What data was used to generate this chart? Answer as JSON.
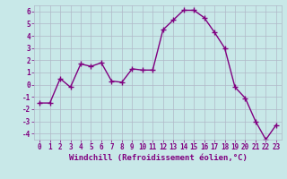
{
  "x": [
    0,
    1,
    2,
    3,
    4,
    5,
    6,
    7,
    8,
    9,
    10,
    11,
    12,
    13,
    14,
    15,
    16,
    17,
    18,
    19,
    20,
    21,
    22,
    23
  ],
  "y": [
    -1.5,
    -1.5,
    0.5,
    -0.2,
    1.7,
    1.5,
    1.8,
    0.3,
    0.2,
    1.3,
    1.2,
    1.2,
    4.5,
    5.3,
    6.1,
    6.1,
    5.5,
    4.3,
    3.0,
    -0.2,
    -1.1,
    -3.0,
    -4.5,
    -3.3
  ],
  "xlabel": "Windchill (Refroidissement éolien,°C)",
  "xlim_min": -0.5,
  "xlim_max": 23.5,
  "ylim_min": -4.5,
  "ylim_max": 6.5,
  "yticks": [
    -4,
    -3,
    -2,
    -1,
    0,
    1,
    2,
    3,
    4,
    5,
    6
  ],
  "xticks": [
    0,
    1,
    2,
    3,
    4,
    5,
    6,
    7,
    8,
    9,
    10,
    11,
    12,
    13,
    14,
    15,
    16,
    17,
    18,
    19,
    20,
    21,
    22,
    23
  ],
  "line_color": "#800080",
  "marker": "+",
  "marker_size": 4,
  "bg_color": "#c8e8e8",
  "grid_color": "#b0b8c8",
  "tick_color": "#800080",
  "label_color": "#800080",
  "tick_fontsize": 5.5,
  "xlabel_fontsize": 6.5,
  "linewidth": 1.0
}
